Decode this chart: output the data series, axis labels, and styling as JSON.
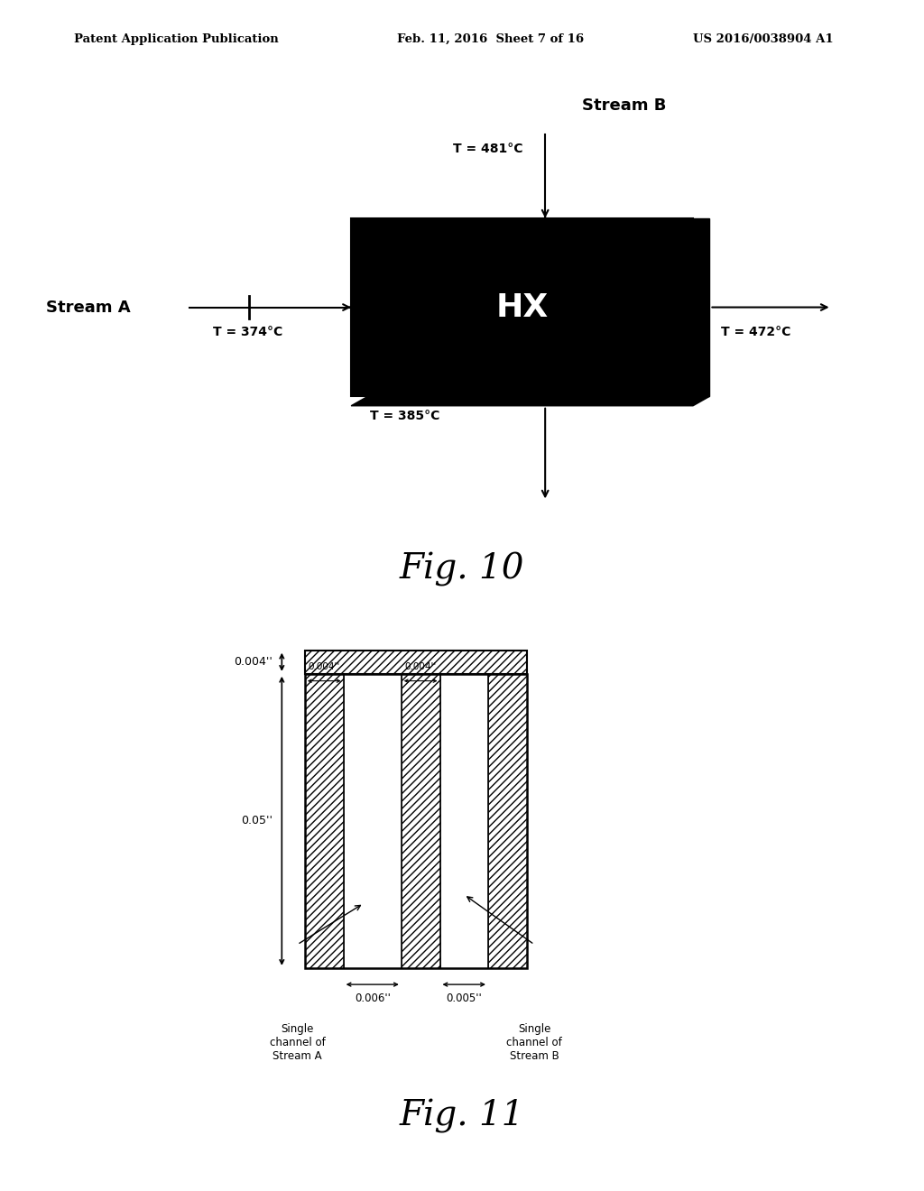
{
  "background_color": "#ffffff",
  "header_text": "Patent Application Publication",
  "header_date": "Feb. 11, 2016  Sheet 7 of 16",
  "header_patent": "US 2016/0038904 A1",
  "fig10_title": "Fig. 10",
  "fig11_title": "Fig. 11",
  "hx_label": "HX",
  "stream_a_label": "Stream A",
  "stream_b_label": "Stream B",
  "T_in_a": "T = 374°C",
  "T_out_a": "T = 472°C",
  "T_in_b": "T = 481°C",
  "T_out_b": "T = 385°C",
  "dim_top": "0.004''",
  "dim_wall1": "0.004''",
  "dim_wall2": "0.004''",
  "dim_height": "0.05''",
  "dim_channelA": "0.006''",
  "dim_channelB": "0.005''",
  "label_stream_a": "Single\nchannel of\nStream A",
  "label_stream_b": "Single\nchannel of\nStream B"
}
